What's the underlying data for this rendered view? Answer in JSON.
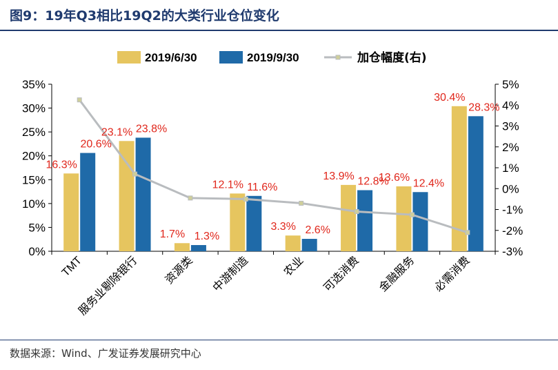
{
  "figure": {
    "title": "图9：19年Q3相比19Q2的大类行业仓位变化",
    "source": "数据来源：Wind、广发证券发展研究中心"
  },
  "colors": {
    "series1": "#E6C55F",
    "series2": "#1F6AA8",
    "line": "#B9BCBF",
    "line_marker": "#B9BCBF",
    "labels": "#E0261B",
    "title": "#1F3A6E"
  },
  "chart_data": {
    "type": "bar",
    "categories": [
      "TMT",
      "服务业剔除银行",
      "资源类",
      "中游制造",
      "农业",
      "可选消费",
      "金融服务",
      "必需消费"
    ],
    "series": [
      {
        "name": "2019/6/30",
        "values": [
          16.3,
          23.1,
          1.7,
          12.1,
          3.3,
          13.9,
          13.6,
          30.4
        ],
        "axis": "left"
      },
      {
        "name": "2019/9/30",
        "values": [
          20.6,
          23.8,
          1.3,
          11.6,
          2.6,
          12.8,
          12.4,
          28.3
        ],
        "axis": "left"
      },
      {
        "name": "加仓幅度(右)",
        "type": "line",
        "values": [
          4.25,
          0.7,
          -0.45,
          -0.5,
          -0.7,
          -1.1,
          -1.25,
          -2.1
        ],
        "axis": "right"
      }
    ],
    "data_labels": {
      "2019/6/30": [
        "16.3%",
        "23.1%",
        "1.7%",
        "12.1%",
        "3.3%",
        "13.9%",
        "13.6%",
        "30.4%"
      ],
      "2019/9/30": [
        "20.6%",
        "23.8%",
        "1.3%",
        "11.6%",
        "2.6%",
        "12.8%",
        "12.4%",
        "28.3%"
      ]
    },
    "left_axis": {
      "ylim": [
        0,
        35
      ],
      "ticks": [
        "0%",
        "5%",
        "10%",
        "15%",
        "20%",
        "25%",
        "30%",
        "35%"
      ]
    },
    "right_axis": {
      "ylim": [
        -3,
        5
      ],
      "ticks": [
        "-3%",
        "-2%",
        "-1%",
        "0%",
        "1%",
        "2%",
        "3%",
        "4%",
        "5%"
      ]
    },
    "grid": false,
    "legend": "top"
  }
}
